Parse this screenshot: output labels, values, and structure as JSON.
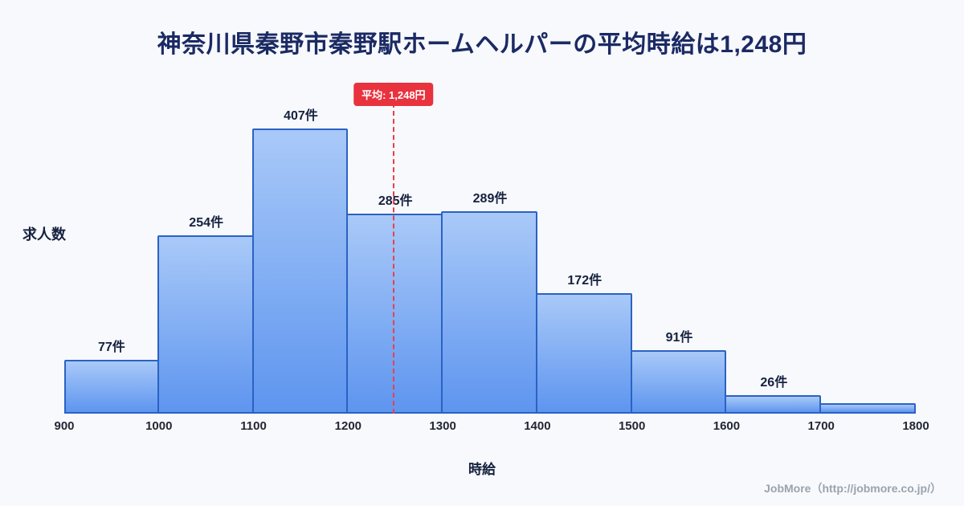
{
  "page": {
    "footer": "JobMore（http://jobmore.co.jp/）"
  },
  "chart_data": {
    "type": "bar",
    "subtype": "histogram",
    "title": "神奈川県秦野市秦野駅ホームヘルパーの平均時給は1,248円",
    "xlabel": "時給",
    "ylabel": "求人数",
    "bin_edges": [
      900,
      1000,
      1100,
      1200,
      1300,
      1400,
      1500,
      1600,
      1700,
      1800
    ],
    "values": [
      77,
      254,
      407,
      285,
      289,
      172,
      91,
      26,
      15
    ],
    "bar_labels": [
      "77件",
      "254件",
      "407件",
      "285件",
      "289件",
      "172件",
      "91件",
      "26件",
      ""
    ],
    "xlim": [
      900,
      1800
    ],
    "ylim": [
      0,
      420
    ],
    "grid": false,
    "legend": false,
    "average": {
      "value": 1248,
      "label": "平均: 1,248円"
    },
    "colors": {
      "background": "#f7f9fd",
      "title_color": "#1b2a63",
      "bar_fill_top": "#a9c9f8",
      "bar_fill_bottom": "#5e95ef",
      "bar_border": "#2b62c4",
      "average_line": "#e8404a",
      "badge_bg": "#e8323e",
      "badge_text": "#ffffff"
    }
  }
}
